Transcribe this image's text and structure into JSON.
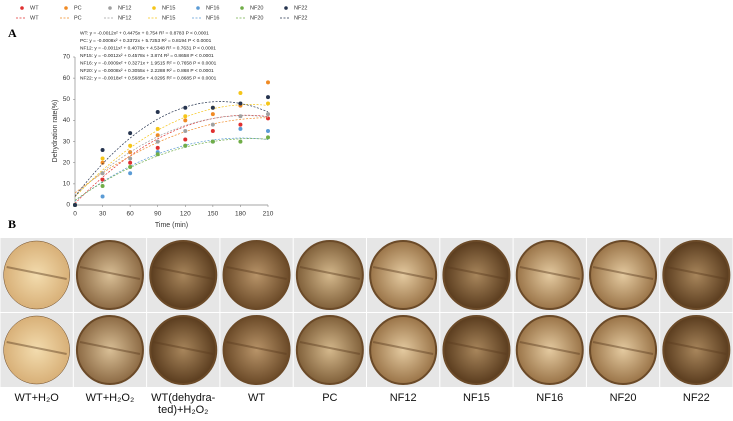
{
  "chart_data": {
    "type": "scatter",
    "panel_label": "A",
    "y_label": "Dehydration rate(%)",
    "x_label": "Time (min)",
    "x": [
      0,
      30,
      60,
      90,
      120,
      150,
      180,
      210
    ],
    "xlim": [
      0,
      210
    ],
    "xticks": [
      0,
      30,
      60,
      90,
      120,
      150,
      180,
      210
    ],
    "ylim": [
      0,
      70
    ],
    "yticks": [
      0,
      10,
      20,
      30,
      40,
      50,
      60,
      70
    ],
    "series": [
      {
        "name": "WT",
        "color": "#e03030",
        "values": [
          0,
          12,
          20,
          27,
          31,
          35,
          38,
          41
        ],
        "fit": [
          -0.0012,
          0.4475,
          0.754
        ],
        "equation": "WT:    y = -0.0012x² + 0.4475x + 0.754   R² = 0.8783  P < 0.0001"
      },
      {
        "name": "PC",
        "color": "#f08a24",
        "values": [
          0,
          20,
          25,
          33,
          40,
          43,
          47,
          58
        ],
        "fit": [
          -0.0008,
          0.3372,
          5.7253
        ],
        "equation": "PC:    y = -0.0008x² + 0.3372x + 5.7253   R² = 0.8194  P < 0.0001"
      },
      {
        "name": "NF12",
        "color": "#a0a0a0",
        "values": [
          0,
          15,
          22,
          30,
          35,
          38,
          42,
          43
        ],
        "fit": [
          -0.0011,
          0.4076,
          4.5348
        ],
        "equation": "NF12: y = -0.0011x² + 0.4076x + 4.5348   R² = 0.7631  P < 0.0001"
      },
      {
        "name": "NF15",
        "color": "#f5c518",
        "values": [
          0,
          22,
          28,
          36,
          42,
          46,
          53,
          48
        ],
        "fit": [
          -0.0012,
          0.4578,
          3.874
        ],
        "equation": "NF15: y = -0.0012x² + 0.4578x + 3.874   R² = 0.8658  P < 0.0001"
      },
      {
        "name": "NF16",
        "color": "#5b9bd5",
        "values": [
          0,
          4,
          15,
          25,
          28,
          30,
          36,
          35
        ],
        "fit": [
          -0.0009,
          0.3271,
          1.9515
        ],
        "equation": "NF16: y = -0.0009x² + 0.3271x + 1.9515   R² = 0.7658  P < 0.0001"
      },
      {
        "name": "NF20",
        "color": "#70ad47",
        "values": [
          0,
          9,
          18,
          24,
          28,
          30,
          30,
          32
        ],
        "fit": [
          -0.0008,
          0.3055,
          2.2288
        ],
        "equation": "NF20: y = -0.0008x² + 0.3055x + 2.2288   R² = 0.868  P < 0.0001"
      },
      {
        "name": "NF22",
        "color": "#26344f",
        "values": [
          0,
          26,
          34,
          44,
          46,
          46,
          48,
          51
        ],
        "fit": [
          -0.0018,
          0.5685,
          4.0295
        ],
        "equation": "NF22: y = -0.0018x² + 0.5685x + 4.0295   R² = 0.8685  P < 0.0001"
      }
    ]
  },
  "photos": {
    "panel_label": "B",
    "labels": [
      [
        "WT+H₂O"
      ],
      [
        "WT+H₂O₂"
      ],
      [
        "WT(dehydra-",
        "ted)+H₂O₂"
      ],
      [
        "WT"
      ],
      [
        "PC"
      ],
      [
        "NF12"
      ],
      [
        "NF15"
      ],
      [
        "NF16"
      ],
      [
        "NF20"
      ],
      [
        "NF22"
      ]
    ]
  }
}
